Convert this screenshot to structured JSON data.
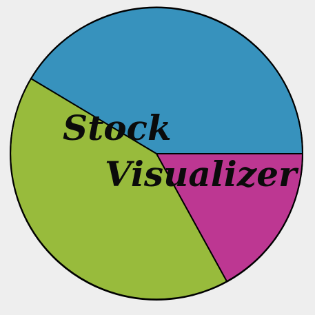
{
  "logo": {
    "title_line1": "Stock",
    "title_line2": "Visualizer",
    "colors": {
      "background": "#eeeeee",
      "slice_blue": "#3792bd",
      "slice_green": "#98bb3c",
      "slice_magenta": "#bd3792",
      "outline": "#000000",
      "text": "#0b0b0b"
    },
    "slices": [
      {
        "color_key": "slice_blue",
        "share_percent": 41.7
      },
      {
        "color_key": "slice_magenta",
        "share_percent": 16.7
      },
      {
        "color_key": "slice_green",
        "share_percent": 41.6
      }
    ]
  }
}
